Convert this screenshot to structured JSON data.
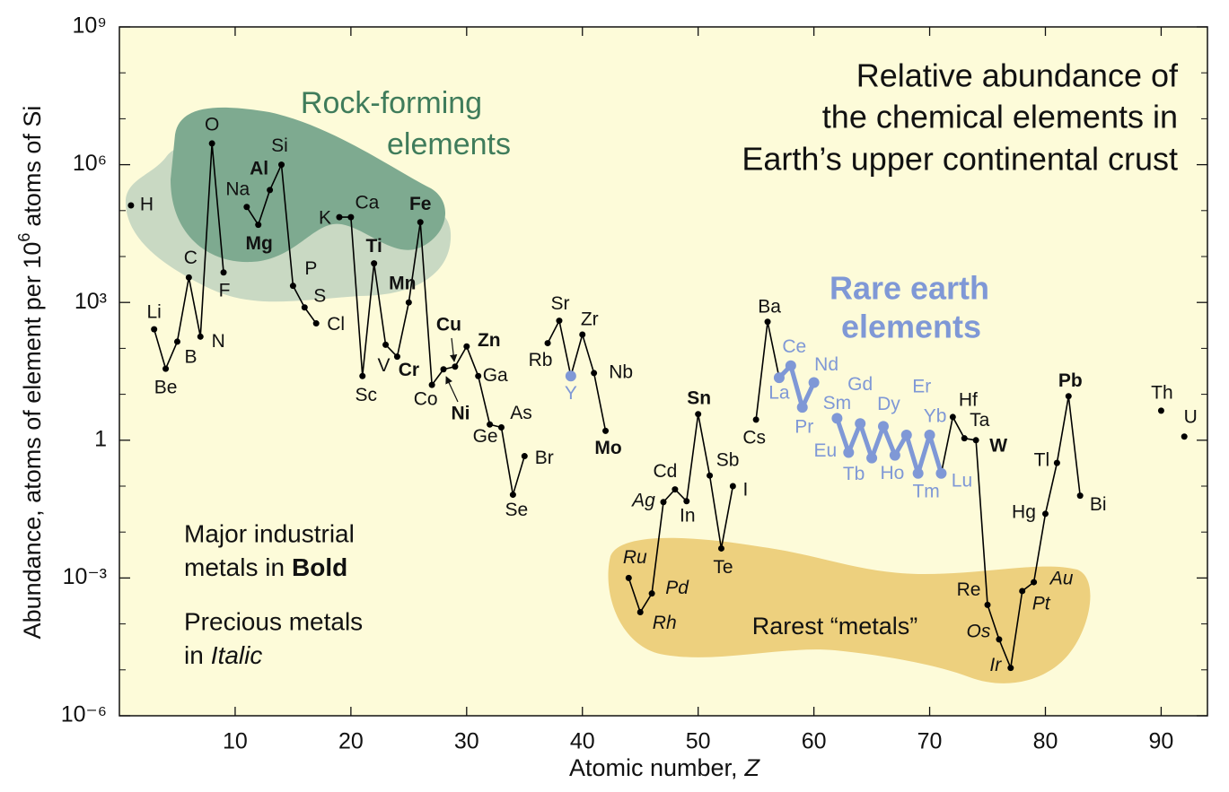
{
  "chart_data": {
    "type": "line",
    "title_lines": [
      "Relative abundance of",
      "the chemical elements in",
      "Earth’s upper continental crust"
    ],
    "x_label": [
      "Atomic number,",
      "Z"
    ],
    "y_label": [
      "Abundance, atoms of element per 10",
      "6",
      "atoms of Si"
    ],
    "rock_forming": [
      "Rock-forming",
      "elements"
    ],
    "rare_earth": [
      "Rare earth",
      "elements"
    ],
    "rarest": "Rarest “metals”",
    "notes": [
      [
        "Major industrial",
        "metals in",
        "Bold"
      ],
      [
        "Precious metals",
        "in",
        "Italic"
      ]
    ],
    "xlim": [
      0,
      94
    ],
    "xticks": [
      10,
      20,
      30,
      40,
      50,
      60,
      70,
      80,
      90
    ],
    "ylim": [
      1e-06,
      1000000000
    ],
    "yscale": "log",
    "yticks": [
      {
        "value": 1e-06,
        "label": "10⁻⁶"
      },
      {
        "value": 0.001,
        "label": "10⁻³"
      },
      1,
      {
        "value": 1000,
        "label": "10³"
      },
      {
        "value": 1000000,
        "label": "10⁶"
      },
      {
        "value": 1000000000,
        "label": "10⁹"
      }
    ],
    "yminorticks": [
      1e-05,
      0.0001,
      0.01,
      0.1,
      10,
      100,
      10000,
      100000,
      10000000,
      100000000
    ],
    "x": [
      1,
      2,
      3,
      4,
      5,
      6,
      7,
      8,
      9,
      10,
      11,
      12,
      13,
      14,
      15,
      16,
      17,
      18,
      19,
      20,
      21,
      22,
      23,
      24,
      25,
      26,
      27,
      28,
      29,
      30,
      31,
      32,
      33,
      34,
      35,
      36,
      37,
      38,
      39,
      40,
      41,
      42,
      43,
      44,
      45,
      46,
      47,
      48,
      49,
      50,
      51,
      52,
      53,
      54,
      55,
      56,
      57,
      58,
      59,
      60,
      61,
      62,
      63,
      64,
      65,
      66,
      67,
      68,
      69,
      70,
      71,
      72,
      73,
      74,
      75,
      76,
      77,
      78,
      79,
      80,
      81,
      82,
      83,
      84,
      85,
      86,
      87,
      88,
      89,
      90,
      91,
      92
    ],
    "labels": [
      "H",
      null,
      "Li",
      "Be",
      "B",
      "C",
      "N",
      "O",
      "F",
      null,
      "Na",
      "Mg",
      "Al",
      "Si",
      "P",
      "S",
      "Cl",
      null,
      "K",
      "Ca",
      "Sc",
      "Ti",
      "V",
      "Cr",
      "Mn",
      "Fe",
      "Co",
      "Ni",
      "Cu",
      "Zn",
      "Ga",
      "Ge",
      "As",
      "Se",
      "Br",
      null,
      "Rb",
      "Sr",
      "Y",
      "Zr",
      "Nb",
      "Mo",
      null,
      "Ru",
      "Rh",
      "Pd",
      "Ag",
      "Cd",
      "In",
      "Sn",
      "Sb",
      "Te",
      "I",
      null,
      "Cs",
      "Ba",
      "La",
      "Ce",
      "Pr",
      "Nd",
      null,
      "Sm",
      "Eu",
      "Gd",
      "Tb",
      "Dy",
      "Ho",
      "Er",
      "Tm",
      "Yb",
      "Lu",
      "Hf",
      "Ta",
      "W",
      "Re",
      "Os",
      "Ir",
      "Pt",
      "Au",
      "Hg",
      "Tl",
      "Pb",
      "Bi",
      null,
      null,
      null,
      null,
      null,
      null,
      "Th",
      null,
      "U"
    ],
    "label_style": [
      "normal",
      null,
      "normal",
      "normal",
      "normal",
      "normal",
      "normal",
      "normal",
      "normal",
      null,
      "normal",
      "bold",
      "bold",
      "normal",
      "normal",
      "normal",
      "normal",
      null,
      "normal",
      "normal",
      "normal",
      "bold",
      "normal",
      "bold",
      "bold",
      "bold",
      "normal",
      "bold",
      "bold",
      "bold",
      "normal",
      "small",
      "normal",
      "small",
      "normal",
      null,
      "normal",
      "normal",
      "normal",
      "normal",
      "normal",
      "bold",
      null,
      "italic",
      "italic",
      "italic",
      "italic",
      "normal",
      "normal",
      "bold",
      "normal",
      "normal",
      "normal",
      null,
      "normal",
      "normal",
      "normal",
      "normal",
      "normal",
      "normal",
      null,
      "normal",
      "normal",
      "normal",
      "normal",
      "normal",
      "normal",
      "normal",
      "normal",
      "normal",
      "normal",
      "normal",
      "normal",
      "bold",
      "normal",
      "italic",
      "italic",
      "italic",
      "italic",
      "normal",
      "normal",
      "bold",
      "normal",
      null,
      null,
      null,
      null,
      null,
      null,
      "normal",
      null,
      "normal"
    ],
    "series": [
      {
        "color": "#000000",
        "line_width": 1.6,
        "marker_radius": 3.5,
        "values": [
          130000,
          null,
          260,
          36,
          140,
          3500,
          180,
          2900000,
          4500,
          null,
          120000,
          49000,
          280000,
          1000000,
          2300,
          780,
          350,
          null,
          72000,
          72000,
          25,
          7100,
          120,
          66,
          1000,
          56000,
          16,
          35,
          40,
          110,
          25,
          2.2,
          1.9,
          0.065,
          0.45,
          null,
          130,
          400,
          25,
          200,
          29,
          1.6,
          null,
          0.001,
          0.00018,
          0.00046,
          0.045,
          0.085,
          0.047,
          3.7,
          0.17,
          0.0044,
          0.1,
          null,
          2.8,
          380,
          23,
          null,
          null,
          null,
          null,
          null,
          null,
          null,
          null,
          null,
          null,
          null,
          null,
          null,
          0.19,
          3.2,
          1.1,
          1,
          0.00026,
          4.6e-05,
          1.1e-05,
          0.00052,
          0.00081,
          0.025,
          0.32,
          9.1,
          0.062,
          null,
          null,
          null,
          null,
          null,
          null,
          4.4,
          null,
          1.2
        ]
      },
      {
        "color": "#7f98d6",
        "line_width": 5,
        "marker_radius": 6,
        "values": [
          null,
          null,
          null,
          null,
          null,
          null,
          null,
          null,
          null,
          null,
          null,
          null,
          null,
          null,
          null,
          null,
          null,
          null,
          null,
          null,
          null,
          null,
          null,
          null,
          null,
          null,
          null,
          null,
          null,
          null,
          null,
          null,
          null,
          null,
          null,
          null,
          null,
          null,
          25,
          null,
          null,
          null,
          null,
          null,
          null,
          null,
          null,
          null,
          null,
          null,
          null,
          null,
          null,
          null,
          null,
          null,
          23,
          42,
          5.2,
          18,
          null,
          3,
          0.54,
          2.3,
          0.41,
          2,
          0.47,
          1.3,
          0.19,
          1.3,
          0.19,
          null,
          null,
          null,
          null,
          null,
          null,
          null,
          null,
          null,
          null,
          null,
          null,
          null,
          null,
          null,
          null,
          null,
          null,
          null,
          null,
          null
        ]
      }
    ]
  }
}
